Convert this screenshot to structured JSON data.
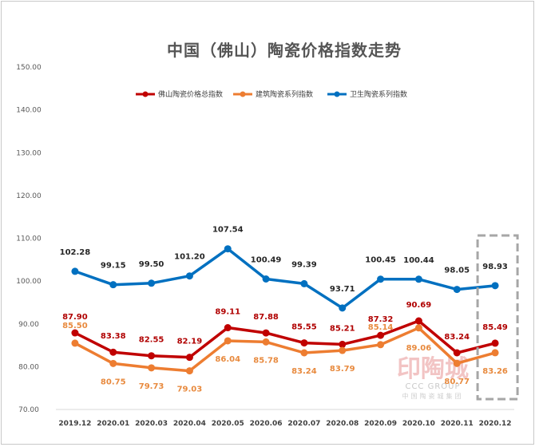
{
  "chart_data": {
    "type": "line",
    "title": "中国（佛山）陶瓷价格指数走势",
    "xlabel": "",
    "ylabel": "",
    "ylim": [
      70,
      150
    ],
    "yticks": [
      "70.00",
      "80.00",
      "90.00",
      "100.00",
      "110.00",
      "120.00",
      "130.00",
      "140.00",
      "150.00"
    ],
    "categories": [
      "2019.12",
      "2020.01",
      "2020.03",
      "2020.04",
      "2020.05",
      "2020.06",
      "2020.07",
      "2020.08",
      "2020.09",
      "2020.10",
      "2020.11",
      "2020.12"
    ],
    "legend_position": "top-center",
    "grid": false,
    "series": [
      {
        "name": "佛山陶瓷价格总指数",
        "color": "#c00000",
        "values": [
          87.9,
          83.38,
          82.55,
          82.19,
          89.11,
          87.88,
          85.55,
          85.21,
          87.32,
          90.69,
          83.24,
          85.49
        ],
        "labels": [
          "87.90",
          "83.38",
          "82.55",
          "82.19",
          "89.11",
          "87.88",
          "85.55",
          "85.21",
          "87.32",
          "90.69",
          "83.24",
          "85.49"
        ]
      },
      {
        "name": "建筑陶瓷系列指数",
        "color": "#ed7d31",
        "values": [
          85.5,
          80.75,
          79.73,
          79.03,
          86.04,
          85.78,
          83.24,
          83.79,
          85.14,
          89.06,
          80.77,
          83.26
        ],
        "labels": [
          "85.50",
          "80.75",
          "79.73",
          "79.03",
          "86.04",
          "85.78",
          "83.24",
          "83.79",
          "85.14",
          "89.06",
          "80.77",
          "83.26"
        ]
      },
      {
        "name": "卫生陶瓷系列指数",
        "color": "#0070c0",
        "values": [
          102.28,
          99.15,
          99.5,
          101.2,
          107.54,
          100.49,
          99.39,
          93.71,
          100.45,
          100.44,
          98.05,
          98.93
        ],
        "labels": [
          "102.28",
          "99.15",
          "99.50",
          "101.20",
          "107.54",
          "100.49",
          "99.39",
          "93.71",
          "100.45",
          "100.44",
          "98.05",
          "98.93"
        ]
      }
    ],
    "highlight_box_category": "2020.12",
    "highlight_color": "#a6a6a6"
  },
  "watermark": {
    "mark_text": "印陶城",
    "brand": "CCC GROUP",
    "subtitle": "中国陶瓷城集团"
  }
}
